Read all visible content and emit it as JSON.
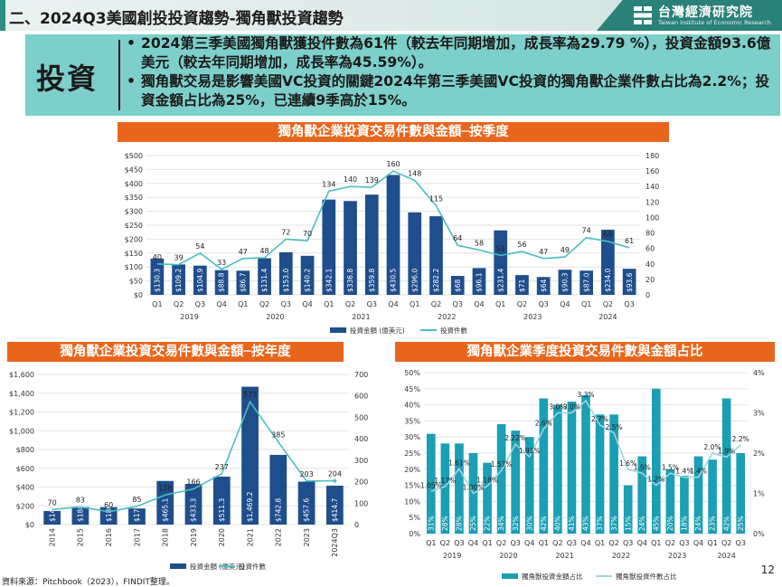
{
  "header": {
    "title": "二、2024Q3美國創投投資趨勢-獨角獸投資趨勢",
    "logo_cn": "台灣經濟研究院",
    "logo_en": "Taiwan Institute of Economic Research"
  },
  "summary": {
    "keyword": "投資",
    "bullets": [
      "2024第三季美國獨角獸獲投件數為61件（較去年同期增加，成長率為29.79 %），投資金額93.6億美元（較去年同期增加，成長率為45.59%）。",
      "獨角獸交易是影響美國VC投資的關鍵2024年第三季美國VC投資的獨角獸企業件數占比為2.2%；投資金額占比為25%，已連續9季高於15%。"
    ]
  },
  "colors": {
    "bar": "#1f4e8c",
    "line": "#4bbfc0",
    "bar2": "#1a9fb5",
    "banner": "#e8661c",
    "summary_bg": "#7dcfca"
  },
  "footer": {
    "source": "資料來源：Pitchbook（2023），FINDIT整理。",
    "page": "12"
  },
  "chart_data": [
    {
      "type": "bar",
      "title": "獨角獸企業投資交易件數與金額─按季度",
      "categories": [
        "Q1",
        "Q2",
        "Q3",
        "Q4",
        "Q1",
        "Q2",
        "Q3",
        "Q4",
        "Q1",
        "Q2",
        "Q3",
        "Q4",
        "Q1",
        "Q2",
        "Q3",
        "Q4",
        "Q1",
        "Q2",
        "Q3",
        "Q4",
        "Q1",
        "Q2",
        "Q3"
      ],
      "years": [
        {
          "label": "2019",
          "start": 0,
          "end": 3
        },
        {
          "label": "2020",
          "start": 4,
          "end": 7
        },
        {
          "label": "2021",
          "start": 8,
          "end": 11
        },
        {
          "label": "2022",
          "start": 12,
          "end": 15
        },
        {
          "label": "2023",
          "start": 16,
          "end": 19
        },
        {
          "label": "2024",
          "start": 20,
          "end": 22
        }
      ],
      "series": [
        {
          "name": "投資金額 (億美元)",
          "axis": "left",
          "values": [
            130.3,
            109.2,
            104.9,
            88.8,
            86.7,
            131.4,
            153.0,
            140.2,
            342.1,
            336.8,
            359.8,
            430.5,
            296.0,
            282.2,
            68,
            96.1,
            231.4,
            71,
            64,
            90.3,
            87.0,
            234.0,
            93.6
          ],
          "labels": [
            "$130.3",
            "$109.2",
            "$104.9",
            "$88.8",
            "$86.7",
            "$131.4",
            "$153.0",
            "$140.2",
            "$342.1",
            "$336.8",
            "$359.8",
            "$430.5",
            "$296.0",
            "$282.2",
            "$68",
            "$96.1",
            "$231.4",
            "$71",
            "$64",
            "$90.3",
            "$87.0",
            "$234.0",
            "$93.6"
          ]
        },
        {
          "name": "投資件數",
          "axis": "right",
          "values": [
            40,
            39,
            54,
            33,
            47,
            48,
            72,
            70,
            134,
            140,
            139,
            160,
            148,
            115,
            64,
            58,
            51,
            56,
            47,
            49,
            74,
            69,
            61
          ]
        }
      ],
      "yleft": {
        "min": 0,
        "max": 500,
        "ticks": [
          "$0",
          "$50",
          "$100",
          "$150",
          "$200",
          "$250",
          "$300",
          "$350",
          "$400",
          "$450",
          "$500"
        ]
      },
      "yright": {
        "min": 0,
        "max": 180,
        "ticks": [
          "0",
          "20",
          "40",
          "60",
          "80",
          "100",
          "120",
          "140",
          "160",
          "180"
        ]
      }
    },
    {
      "type": "bar",
      "title": "獨角獸企業投資交易件數與金額─按年度",
      "categories": [
        "2014",
        "2015",
        "2016",
        "2017",
        "2018",
        "2019",
        "2020",
        "2021",
        "2022",
        "2023",
        "2024Q3"
      ],
      "series": [
        {
          "name": "投資金額 (億美元)",
          "axis": "left",
          "values": [
            145,
            188,
            186,
            172,
            465.1,
            433.3,
            511.3,
            1469.2,
            742.8,
            457.6,
            414.7
          ],
          "labels": [
            "$145",
            "$188",
            "$186",
            "$172",
            "$465.1",
            "$433.3",
            "$511.3",
            "$1,469.2",
            "$742.8",
            "$457.6",
            "$414.7"
          ]
        },
        {
          "name": "投資件數",
          "axis": "right",
          "values": [
            70,
            83,
            60,
            85,
            138,
            166,
            237,
            573,
            385,
            203,
            204
          ]
        }
      ],
      "yleft": {
        "min": 0,
        "max": 1600,
        "ticks": [
          "$0",
          "$200",
          "$400",
          "$600",
          "$800",
          "$1,000",
          "$1,200",
          "$1,400",
          "$1,600"
        ]
      },
      "yright": {
        "min": 0,
        "max": 700,
        "ticks": [
          "0",
          "100",
          "200",
          "300",
          "400",
          "500",
          "600",
          "700"
        ]
      }
    },
    {
      "type": "bar",
      "title": "獨角獸企業季度投資交易件數與金額占比",
      "categories": [
        "Q1",
        "Q2",
        "Q3",
        "Q4",
        "Q1",
        "Q2",
        "Q3",
        "Q4",
        "Q1",
        "Q2",
        "Q3",
        "Q4",
        "Q1",
        "Q2",
        "Q3",
        "Q4",
        "Q1",
        "Q2",
        "Q3",
        "Q4",
        "Q1",
        "Q2",
        "Q3"
      ],
      "years": [
        {
          "label": "2019",
          "start": 0,
          "end": 3
        },
        {
          "label": "2020",
          "start": 4,
          "end": 7
        },
        {
          "label": "2021",
          "start": 8,
          "end": 11
        },
        {
          "label": "2022",
          "start": 12,
          "end": 15
        },
        {
          "label": "2023",
          "start": 16,
          "end": 19
        },
        {
          "label": "2024",
          "start": 20,
          "end": 22
        }
      ],
      "series": [
        {
          "name": "獨角獸投資金額占比",
          "axis": "left",
          "values": [
            31,
            28,
            28,
            25,
            22,
            34,
            32,
            30,
            42,
            40,
            41,
            43,
            37,
            37,
            15,
            24,
            45,
            20,
            18,
            24,
            23,
            42,
            25
          ],
          "labels": [
            "31%",
            "28%",
            "28%",
            "25%",
            "22%",
            "34%",
            "32%",
            "30%",
            "42%",
            "40%",
            "41%",
            "43%",
            "37%",
            "37%",
            "15%",
            "24%",
            "45%",
            "20%",
            "18%",
            "24%",
            "23%",
            "42%",
            "25%"
          ]
        },
        {
          "name": "獨角獸投資件數占比",
          "axis": "right",
          "values": [
            1.05,
            1.17,
            1.61,
            1.0,
            1.18,
            1.57,
            2.22,
            1.91,
            2.6,
            3.0,
            3.0,
            3.3,
            2.7,
            2.5,
            1.6,
            1.5,
            1.2,
            1.5,
            1.4,
            1.4,
            2.0,
            1.9,
            2.2
          ],
          "labels": [
            "1.05%",
            "1.17%",
            "1.61%",
            "1.00%",
            "1.18%",
            "1.57%",
            "2.22%",
            "1.91%",
            "2.6%",
            "3.0%",
            "3.0%",
            "3.3%",
            "2.7%",
            "2.5%",
            "1.6%",
            "1.5%",
            "1.2%",
            "1.5%",
            "1.4%",
            "1.4%",
            "2.0%",
            "1.9%",
            "2.2%"
          ]
        }
      ],
      "yleft": {
        "min": 0,
        "max": 50,
        "ticks": [
          "0%",
          "5%",
          "10%",
          "15%",
          "20%",
          "25%",
          "30%",
          "35%",
          "40%",
          "45%",
          "50%"
        ]
      },
      "yright": {
        "min": 0,
        "max": 4,
        "ticks": [
          "0%",
          "1%",
          "2%",
          "3%",
          "4%"
        ]
      }
    }
  ]
}
